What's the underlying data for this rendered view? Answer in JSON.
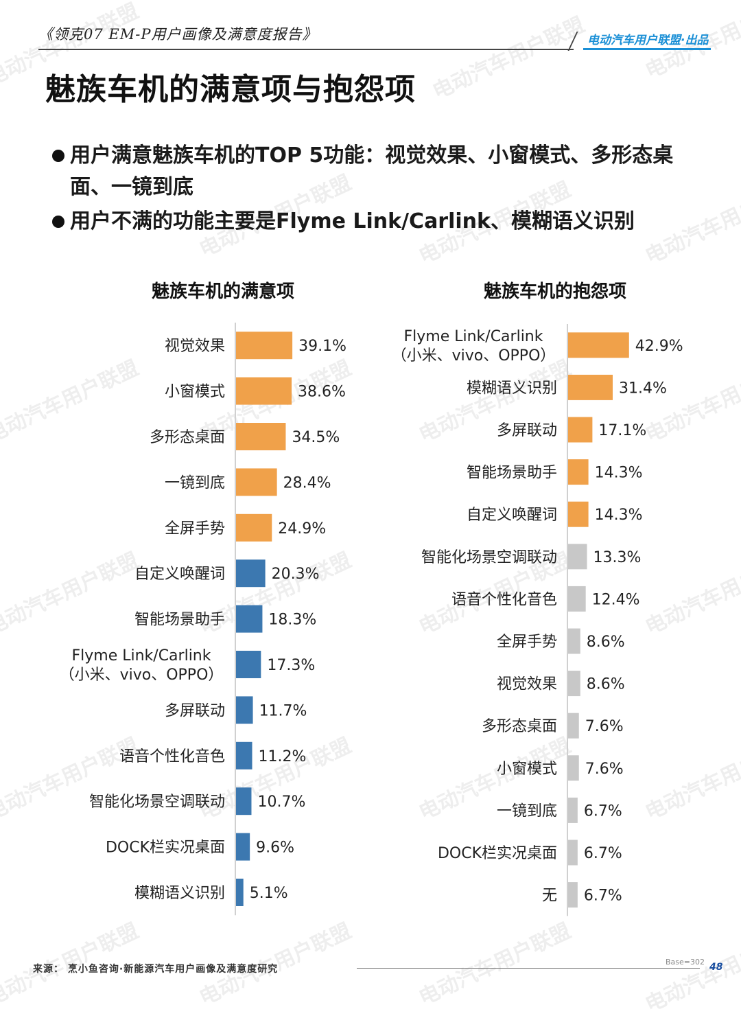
{
  "header": {
    "report_title": "《领克07 EM-P用户画像及满意度报告》",
    "brand": "电动汽车用户联盟·出品"
  },
  "page_title": "魅族车机的满意项与抱怨项",
  "bullets": [
    "用户满意魅族车机的TOP 5功能：视觉效果、小窗模式、多形态桌面、一镜到底",
    "用户不满的功能主要是Flyme Link/Carlink、模糊语义识别"
  ],
  "colors": {
    "highlight": "#F0A14A",
    "satisfied_rest": "#3C78B0",
    "complaint_rest": "#C8C8C8",
    "axis": "#D0D0D0",
    "brand": "#1A8FD6"
  },
  "chart_data": [
    {
      "type": "bar",
      "orientation": "horizontal",
      "title": "魅族车机的满意项",
      "categories": [
        "视觉效果",
        "小窗模式",
        "多形态桌面",
        "一镜到底",
        "全屏手势",
        "自定义唤醒词",
        "智能场景助手",
        "Flyme Link/Carlink\n（小米、vivo、OPPO）",
        "多屏联动",
        "语音个性化音色",
        "智能化场景空调联动",
        "DOCK栏实况桌面",
        "模糊语义识别"
      ],
      "values": [
        39.1,
        38.6,
        34.5,
        28.4,
        24.9,
        20.3,
        18.3,
        17.3,
        11.7,
        11.2,
        10.7,
        9.6,
        5.1
      ],
      "value_labels": [
        "39.1%",
        "38.6%",
        "34.5%",
        "28.4%",
        "24.9%",
        "20.3%",
        "18.3%",
        "17.3%",
        "11.7%",
        "11.2%",
        "10.7%",
        "9.6%",
        "5.1%"
      ],
      "highlight_top": 5,
      "unit": "%"
    },
    {
      "type": "bar",
      "orientation": "horizontal",
      "title": "魅族车机的抱怨项",
      "categories": [
        "Flyme Link/Carlink\n（小米、vivo、OPPO）",
        "模糊语义识别",
        "多屏联动",
        "智能场景助手",
        "自定义唤醒词",
        "智能化场景空调联动",
        "语音个性化音色",
        "全屏手势",
        "视觉效果",
        "多形态桌面",
        "小窗模式",
        "一镜到底",
        "DOCK栏实况桌面",
        "无"
      ],
      "values": [
        42.9,
        31.4,
        17.1,
        14.3,
        14.3,
        13.3,
        12.4,
        8.6,
        8.6,
        7.6,
        7.6,
        6.7,
        6.7,
        6.7
      ],
      "value_labels": [
        "42.9%",
        "31.4%",
        "17.1%",
        "14.3%",
        "14.3%",
        "13.3%",
        "12.4%",
        "8.6%",
        "8.6%",
        "7.6%",
        "7.6%",
        "6.7%",
        "6.7%",
        "6.7%"
      ],
      "highlight_top": 5,
      "unit": "%"
    }
  ],
  "footer": {
    "source": "来源：  烹小鱼咨询·新能源汽车用户画像及满意度研究",
    "base": "Base=302",
    "page_number": "48"
  },
  "watermark": "电动汽车用户联盟"
}
